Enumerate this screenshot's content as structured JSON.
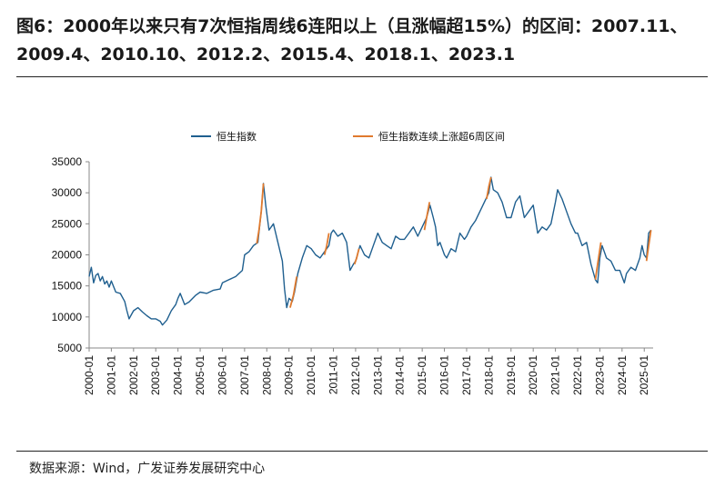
{
  "title": "图6：2000年以来只有7次恒指周线6连阳以上（且涨幅超15%）的区间：2007.11、2009.4、2010.10、2012.2、2015.4、2018.1、2023.1",
  "source": "数据来源：Wind，广发证券发展研究中心",
  "colors": {
    "index": "#1f5f8f",
    "highlight": "#e07a2e"
  },
  "chart_data": {
    "type": "line",
    "ylim": [
      5000,
      35000
    ],
    "yticks": [
      5000,
      10000,
      15000,
      20000,
      25000,
      30000,
      35000
    ],
    "xlim": [
      2000.0,
      2025.4
    ],
    "xticks": [
      "2000-01",
      "2001-01",
      "2002-01",
      "2003-01",
      "2004-01",
      "2005-01",
      "2006-01",
      "2007-01",
      "2008-01",
      "2009-01",
      "2010-01",
      "2011-01",
      "2012-01",
      "2013-01",
      "2014-01",
      "2015-01",
      "2016-01",
      "2017-01",
      "2018-01",
      "2019-01",
      "2020-01",
      "2021-01",
      "2022-01",
      "2023-01",
      "2024-01",
      "2025-01"
    ],
    "legend": [
      "恒生指数",
      "恒生指数连续上涨超6周区间"
    ],
    "legend_position": "top",
    "series": [
      {
        "name": "恒生指数",
        "x": [
          2000.0,
          2000.1,
          2000.2,
          2000.3,
          2000.4,
          2000.5,
          2000.6,
          2000.7,
          2000.8,
          2000.9,
          2001.0,
          2001.2,
          2001.4,
          2001.6,
          2001.7,
          2001.8,
          2002.0,
          2002.2,
          2002.4,
          2002.6,
          2002.8,
          2003.0,
          2003.2,
          2003.3,
          2003.5,
          2003.7,
          2003.9,
          2004.0,
          2004.1,
          2004.3,
          2004.5,
          2004.8,
          2005.0,
          2005.3,
          2005.6,
          2005.9,
          2006.0,
          2006.3,
          2006.6,
          2006.9,
          2007.0,
          2007.2,
          2007.4,
          2007.6,
          2007.75,
          2007.85,
          2007.95,
          2008.1,
          2008.3,
          2008.5,
          2008.7,
          2008.8,
          2008.9,
          2009.0,
          2009.15,
          2009.25,
          2009.4,
          2009.6,
          2009.8,
          2010.0,
          2010.2,
          2010.4,
          2010.6,
          2010.8,
          2010.9,
          2011.0,
          2011.2,
          2011.4,
          2011.6,
          2011.75,
          2011.9,
          2012.0,
          2012.2,
          2012.4,
          2012.6,
          2012.8,
          2013.0,
          2013.2,
          2013.4,
          2013.6,
          2013.8,
          2014.0,
          2014.2,
          2014.4,
          2014.6,
          2014.8,
          2015.0,
          2015.2,
          2015.35,
          2015.5,
          2015.6,
          2015.7,
          2015.8,
          2016.0,
          2016.1,
          2016.3,
          2016.5,
          2016.7,
          2016.9,
          2017.0,
          2017.2,
          2017.4,
          2017.6,
          2017.8,
          2018.0,
          2018.1,
          2018.2,
          2018.4,
          2018.6,
          2018.8,
          2019.0,
          2019.2,
          2019.4,
          2019.6,
          2019.8,
          2020.0,
          2020.2,
          2020.4,
          2020.6,
          2020.8,
          2021.0,
          2021.1,
          2021.3,
          2021.5,
          2021.7,
          2021.9,
          2022.0,
          2022.2,
          2022.4,
          2022.6,
          2022.8,
          2022.9,
          2023.0,
          2023.1,
          2023.3,
          2023.5,
          2023.7,
          2023.9,
          2024.0,
          2024.1,
          2024.2,
          2024.4,
          2024.6,
          2024.8,
          2024.9,
          2025.0,
          2025.1,
          2025.2,
          2025.3
        ],
        "y": [
          16500,
          18000,
          15500,
          16700,
          17000,
          15800,
          16500,
          15300,
          15800,
          14800,
          15800,
          14000,
          13800,
          12500,
          11000,
          9700,
          11000,
          11500,
          10800,
          10200,
          9700,
          9700,
          9300,
          8700,
          9500,
          11000,
          12000,
          13000,
          13800,
          12000,
          12400,
          13500,
          14000,
          13800,
          14300,
          14500,
          15500,
          16000,
          16500,
          17500,
          20000,
          20500,
          21500,
          22000,
          27000,
          31500,
          28000,
          24000,
          25000,
          22000,
          19000,
          14500,
          11500,
          13000,
          12500,
          14000,
          17000,
          19500,
          21500,
          21000,
          20000,
          19500,
          20500,
          21500,
          23500,
          24000,
          23000,
          23500,
          22000,
          17500,
          18500,
          19000,
          21500,
          20000,
          19500,
          21500,
          23500,
          22000,
          21500,
          21000,
          23000,
          22500,
          22500,
          23500,
          24500,
          23000,
          24500,
          26000,
          28000,
          26000,
          24500,
          21500,
          22000,
          20000,
          19500,
          21000,
          20500,
          23500,
          22500,
          23000,
          24500,
          25500,
          27000,
          28500,
          30000,
          32500,
          30500,
          30000,
          28500,
          26000,
          26000,
          28500,
          29500,
          26000,
          27000,
          28000,
          23500,
          24500,
          24000,
          25000,
          28500,
          30500,
          29000,
          27000,
          25000,
          23500,
          23500,
          21500,
          22000,
          18500,
          16000,
          15500,
          19500,
          21500,
          19500,
          19000,
          17500,
          17500,
          16500,
          15500,
          17000,
          18000,
          17500,
          19500,
          21500,
          20000,
          19500,
          23500,
          24000
        ]
      },
      {
        "name": "恒生指数连续上涨超6周区间",
        "segments": [
          {
            "label": "2007.11",
            "x": [
              2007.55,
              2007.65,
              2007.75,
              2007.85
            ],
            "y": [
              21800,
              24000,
              27000,
              31500
            ]
          },
          {
            "label": "2009.4",
            "x": [
              2009.05,
              2009.2,
              2009.35
            ],
            "y": [
              11500,
              13500,
              16500
            ]
          },
          {
            "label": "2010.10",
            "x": [
              2010.6,
              2010.7,
              2010.8
            ],
            "y": [
              20000,
              21500,
              23500
            ]
          },
          {
            "label": "2012.2",
            "x": [
              2011.95,
              2012.05,
              2012.15
            ],
            "y": [
              18500,
              19500,
              21000
            ]
          },
          {
            "label": "2015.4",
            "x": [
              2015.1,
              2015.2,
              2015.33
            ],
            "y": [
              24000,
              26000,
              28500
            ]
          },
          {
            "label": "2018.1",
            "x": [
              2017.9,
              2018.0,
              2018.1
            ],
            "y": [
              29000,
              31000,
              32500
            ]
          },
          {
            "label": "2023.1",
            "x": [
              2022.8,
              2022.9,
              2023.05
            ],
            "y": [
              16000,
              18500,
              22000
            ]
          },
          {
            "label": "",
            "x": [
              2025.1,
              2025.2,
              2025.3
            ],
            "y": [
              19000,
              21500,
              24000
            ]
          }
        ]
      }
    ]
  }
}
